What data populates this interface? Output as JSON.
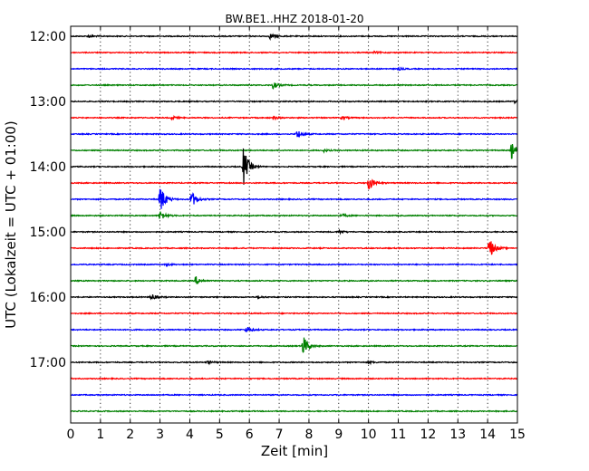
{
  "chart_data": {
    "type": "line",
    "title": "BW.BE1..HHZ 2018-01-20",
    "xlabel": "Zeit  [min]",
    "ylabel": "UTC (Lokalzeit = UTC + 01:00)",
    "xlim": [
      0,
      15
    ],
    "x_ticks": [
      "0",
      "1",
      "2",
      "3",
      "4",
      "5",
      "6",
      "7",
      "8",
      "9",
      "10",
      "11",
      "12",
      "13",
      "14",
      "15"
    ],
    "y_ticks": [
      "12:00",
      "13:00",
      "14:00",
      "15:00",
      "16:00",
      "17:00"
    ],
    "grid": true,
    "trace_colors": [
      "#000000",
      "#ff0000",
      "#0000ff",
      "#008000"
    ],
    "traces": [
      {
        "start": "12:00",
        "events": [
          {
            "t": 6.7,
            "amp": 0.25
          },
          {
            "t": 0.6,
            "amp": 0.12
          }
        ]
      },
      {
        "start": "12:15",
        "events": [
          {
            "t": 10.2,
            "amp": 0.1
          }
        ]
      },
      {
        "start": "12:30",
        "events": [
          {
            "t": 11.0,
            "amp": 0.12
          }
        ]
      },
      {
        "start": "12:45",
        "events": [
          {
            "t": 6.8,
            "amp": 0.35
          }
        ]
      },
      {
        "start": "13:00",
        "events": [
          {
            "t": 14.9,
            "amp": 0.15
          }
        ]
      },
      {
        "start": "13:15",
        "events": [
          {
            "t": 3.4,
            "amp": 0.15
          },
          {
            "t": 6.8,
            "amp": 0.18
          },
          {
            "t": 9.1,
            "amp": 0.15
          }
        ]
      },
      {
        "start": "13:30",
        "events": [
          {
            "t": 7.6,
            "amp": 0.45
          }
        ]
      },
      {
        "start": "13:45",
        "events": [
          {
            "t": 14.8,
            "amp": 0.9
          },
          {
            "t": 8.5,
            "amp": 0.12
          }
        ]
      },
      {
        "start": "14:00",
        "events": [
          {
            "t": 5.8,
            "amp": 2.0
          }
        ]
      },
      {
        "start": "14:15",
        "events": [
          {
            "t": 10.0,
            "amp": 0.8
          }
        ]
      },
      {
        "start": "14:30",
        "events": [
          {
            "t": 3.0,
            "amp": 1.6
          },
          {
            "t": 4.05,
            "amp": 0.9
          }
        ]
      },
      {
        "start": "14:45",
        "events": [
          {
            "t": 3.0,
            "amp": 0.5
          },
          {
            "t": 9.1,
            "amp": 0.15
          }
        ]
      },
      {
        "start": "15:00",
        "events": [
          {
            "t": 9.0,
            "amp": 0.18
          }
        ]
      },
      {
        "start": "15:15",
        "events": [
          {
            "t": 14.05,
            "amp": 1.2
          }
        ]
      },
      {
        "start": "15:30",
        "events": [
          {
            "t": 3.2,
            "amp": 0.12
          }
        ]
      },
      {
        "start": "15:45",
        "events": [
          {
            "t": 4.2,
            "amp": 0.45
          }
        ]
      },
      {
        "start": "16:00",
        "events": [
          {
            "t": 2.7,
            "amp": 0.35
          },
          {
            "t": 6.3,
            "amp": 0.12
          }
        ]
      },
      {
        "start": "16:15",
        "events": []
      },
      {
        "start": "16:30",
        "events": [
          {
            "t": 5.9,
            "amp": 0.35
          }
        ]
      },
      {
        "start": "16:45",
        "events": [
          {
            "t": 7.8,
            "amp": 1.1
          }
        ]
      },
      {
        "start": "17:00",
        "events": [
          {
            "t": 4.6,
            "amp": 0.15
          },
          {
            "t": 10.0,
            "amp": 0.12
          }
        ]
      },
      {
        "start": "17:15",
        "events": []
      },
      {
        "start": "17:30",
        "events": []
      },
      {
        "start": "17:45",
        "events": []
      }
    ]
  }
}
